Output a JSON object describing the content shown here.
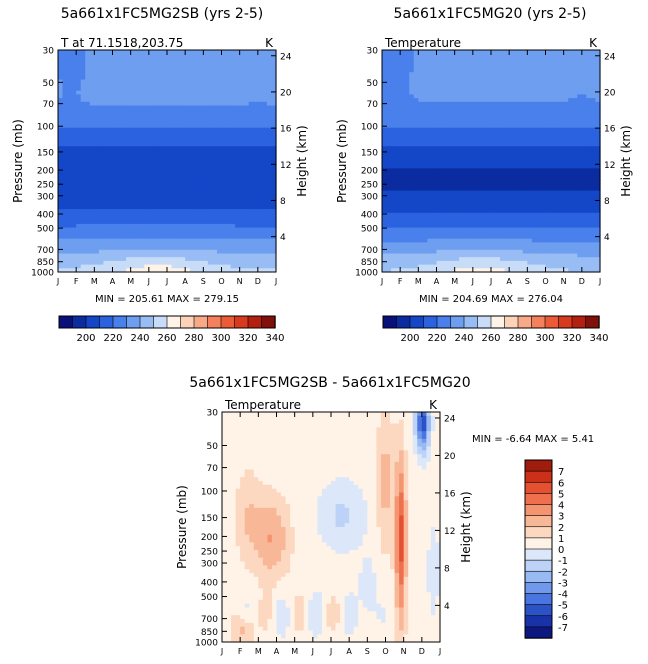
{
  "chart_data": [
    {
      "type": "heatmap",
      "title": "5a661x1FC5MG2SB (yrs 2-5)",
      "subtitle_left": "T at 71.1518,203.75",
      "subtitle_right": "K",
      "xlabel": "",
      "ylabel": "Pressure (mb)",
      "ylabel_right": "Height (km)",
      "x_ticks": [
        "J",
        "F",
        "M",
        "A",
        "M",
        "J",
        "J",
        "A",
        "S",
        "O",
        "N",
        "D",
        "J"
      ],
      "y_ticks": [
        "30",
        "50",
        "70",
        "100",
        "150",
        "200",
        "250",
        "300",
        "400",
        "500",
        "700",
        "850",
        "1000"
      ],
      "y_ticks_right": [
        "24",
        "20",
        "16",
        "12",
        "8",
        "4"
      ],
      "stats": "MIN = 205.61 MAX = 279.15",
      "min": 205.61,
      "max": 279.15,
      "colorbar_ticks": [
        "200",
        "220",
        "240",
        "260",
        "280",
        "300",
        "320",
        "340"
      ]
    },
    {
      "type": "heatmap",
      "title": "5a661x1FC5MG20 (yrs 2-5)",
      "subtitle_left": "Temperature",
      "subtitle_right": "K",
      "xlabel": "",
      "ylabel": "Pressure (mb)",
      "ylabel_right": "Height (km)",
      "x_ticks": [
        "J",
        "F",
        "M",
        "A",
        "M",
        "J",
        "J",
        "A",
        "S",
        "O",
        "N",
        "D",
        "J"
      ],
      "y_ticks": [
        "30",
        "50",
        "70",
        "100",
        "150",
        "200",
        "250",
        "300",
        "400",
        "500",
        "700",
        "850",
        "1000"
      ],
      "y_ticks_right": [
        "24",
        "20",
        "16",
        "12",
        "8",
        "4"
      ],
      "stats": "MIN = 204.69 MAX = 276.04",
      "min": 204.69,
      "max": 276.04,
      "colorbar_ticks": [
        "200",
        "220",
        "240",
        "260",
        "280",
        "300",
        "320",
        "340"
      ]
    },
    {
      "type": "heatmap",
      "title": "5a661x1FC5MG2SB - 5a661x1FC5MG20",
      "subtitle_left": "Temperature",
      "subtitle_right": "K",
      "xlabel": "",
      "ylabel": "Pressure (mb)",
      "ylabel_right": "Height (km)",
      "x_ticks": [
        "J",
        "F",
        "M",
        "A",
        "M",
        "J",
        "J",
        "A",
        "S",
        "O",
        "N",
        "D",
        "J"
      ],
      "y_ticks": [
        "30",
        "50",
        "70",
        "100",
        "150",
        "200",
        "250",
        "300",
        "400",
        "500",
        "700",
        "850",
        "1000"
      ],
      "y_ticks_right": [
        "24",
        "20",
        "16",
        "12",
        "8",
        "4"
      ],
      "stats": "MIN =   -6.64 MAX =    5.41",
      "min": -6.64,
      "max": 5.41,
      "colorbar_ticks": [
        "7",
        "6",
        "5",
        "4",
        "3",
        "2",
        "1",
        "0",
        "-1",
        "-2",
        "-3",
        "-4",
        "-5",
        "-6",
        "-7"
      ]
    }
  ],
  "colors": {
    "abs_scale": [
      "#08107a",
      "#0a2ca0",
      "#1446c8",
      "#2a62e0",
      "#4a80ec",
      "#6e9ef0",
      "#98bcf4",
      "#c8dcf8",
      "#fff2e6",
      "#fcd2b8",
      "#f8aa88",
      "#f4805c",
      "#ec5a36",
      "#d83a1e",
      "#b42010",
      "#80100a"
    ],
    "diff_scale": [
      "#fff2e6",
      "#fcd8c0",
      "#f8b898",
      "#f49470",
      "#ee704c",
      "#e45030",
      "#cc3018",
      "#a01c0c"
    ],
    "diff_scale_neg": [
      "#dce8fa",
      "#bcd2f6",
      "#98baf2",
      "#7098ec",
      "#4a74e0",
      "#2c52c8",
      "#1a32a8",
      "#0c1880"
    ]
  }
}
